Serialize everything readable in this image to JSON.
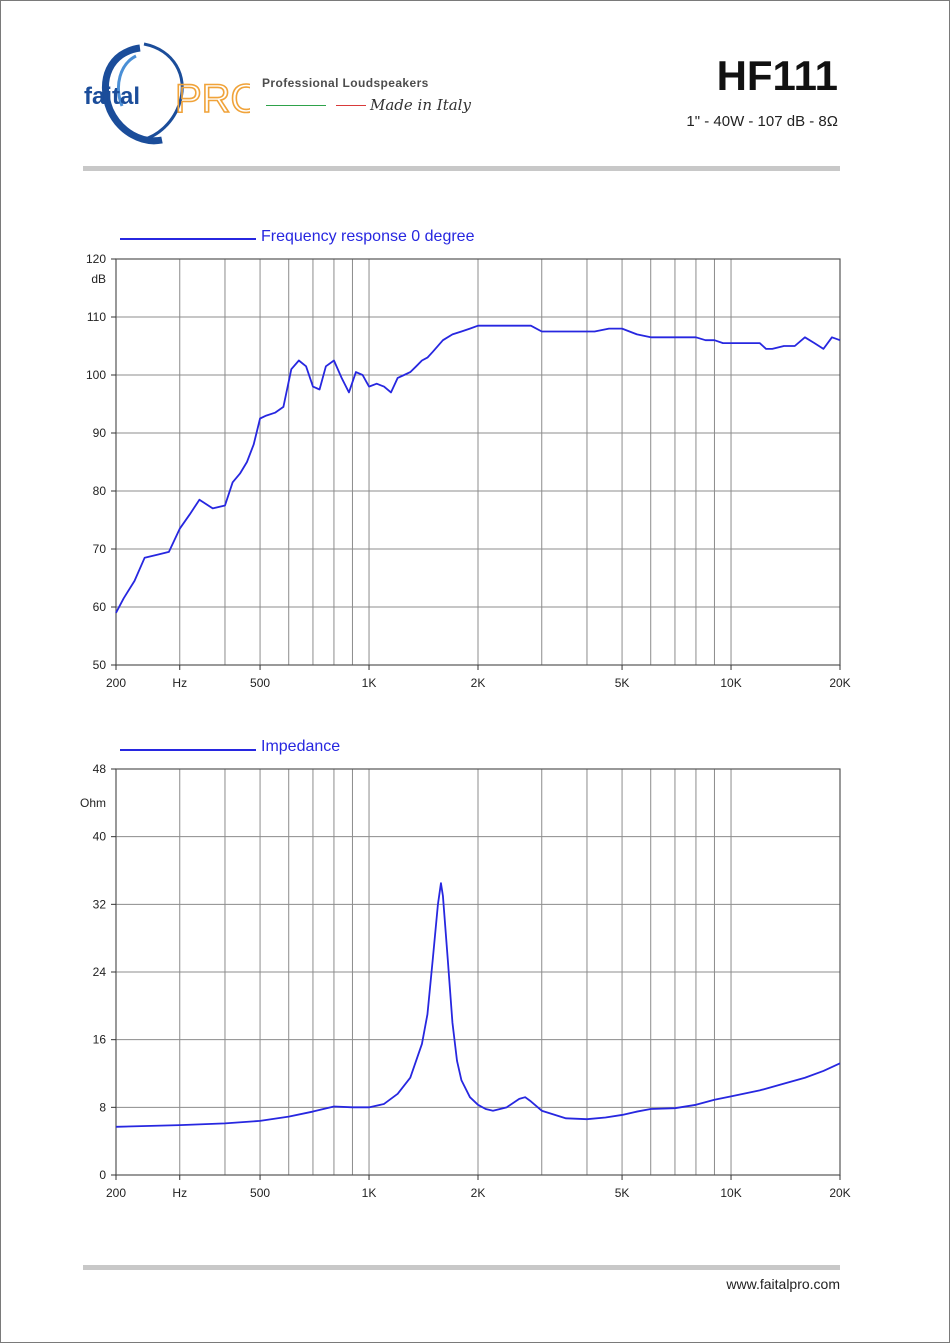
{
  "header": {
    "brand_name": "faitalPRO",
    "tagline_top": "Professional Loudspeakers",
    "tagline_bottom": "Made in Italy",
    "model": "HF111",
    "spec": "1\" - 40W - 107 dB - 8Ω",
    "colors": {
      "brand_blue": "#1b4d9a",
      "brand_orange": "#f0a33a",
      "italy_green": "#2ea24a",
      "italy_red": "#d83a3a"
    }
  },
  "footer": {
    "url": "www.faitalpro.com"
  },
  "chart_data": [
    {
      "type": "line",
      "title": "Frequency response 0 degree",
      "xscale": "log",
      "xlim": [
        200,
        20000
      ],
      "ylim": [
        50,
        120
      ],
      "ylabel": "dB",
      "xticks": [
        {
          "v": 200,
          "label": "200"
        },
        {
          "v": 300,
          "label": "Hz"
        },
        {
          "v": 500,
          "label": "500"
        },
        {
          "v": 1000,
          "label": "1K"
        },
        {
          "v": 2000,
          "label": "2K"
        },
        {
          "v": 5000,
          "label": "5K"
        },
        {
          "v": 10000,
          "label": "10K"
        },
        {
          "v": 20000,
          "label": "20K"
        }
      ],
      "yticks": [
        50,
        60,
        70,
        80,
        90,
        100,
        110,
        120
      ],
      "line_color": "#2727e0",
      "grid": true,
      "series": [
        {
          "name": "Frequency response 0 degree",
          "x": [
            200,
            210,
            225,
            240,
            260,
            280,
            300,
            320,
            340,
            370,
            400,
            420,
            440,
            460,
            480,
            500,
            520,
            550,
            580,
            610,
            640,
            670,
            700,
            730,
            760,
            800,
            840,
            880,
            920,
            960,
            1000,
            1050,
            1100,
            1150,
            1200,
            1250,
            1300,
            1350,
            1400,
            1450,
            1500,
            1600,
            1700,
            1800,
            1900,
            2000,
            2200,
            2400,
            2600,
            2800,
            3000,
            3200,
            3500,
            3800,
            4200,
            4600,
            5000,
            5500,
            6000,
            6500,
            7000,
            7500,
            8000,
            8500,
            9000,
            9500,
            10000,
            11000,
            12000,
            12500,
            13000,
            14000,
            15000,
            16000,
            17000,
            18000,
            19000,
            20000
          ],
          "y": [
            59,
            61.5,
            64.5,
            68.5,
            69,
            69.5,
            73.5,
            76,
            78.5,
            77,
            77.5,
            81.5,
            83,
            85,
            88,
            92.5,
            93,
            93.5,
            94.5,
            101,
            102.5,
            101.5,
            98,
            97.5,
            101.5,
            102.5,
            99.5,
            97,
            100.5,
            100,
            98,
            98.5,
            98,
            97,
            99.5,
            100,
            100.5,
            101.5,
            102.5,
            103,
            104,
            106,
            107,
            107.5,
            108,
            108.5,
            108.5,
            108.5,
            108.5,
            108.5,
            107.5,
            107.5,
            107.5,
            107.5,
            107.5,
            108,
            108,
            107,
            106.5,
            106.5,
            106.5,
            106.5,
            106.5,
            106,
            106,
            105.5,
            105.5,
            105.5,
            105.5,
            104.5,
            104.5,
            105,
            105,
            106.5,
            105.5,
            104.5,
            106.5,
            106
          ]
        }
      ]
    },
    {
      "type": "line",
      "title": "Impedance",
      "xscale": "log",
      "xlim": [
        200,
        20000
      ],
      "ylim": [
        0,
        48
      ],
      "ylabel": "Ohm",
      "xticks": [
        {
          "v": 200,
          "label": "200"
        },
        {
          "v": 300,
          "label": "Hz"
        },
        {
          "v": 500,
          "label": "500"
        },
        {
          "v": 1000,
          "label": "1K"
        },
        {
          "v": 2000,
          "label": "2K"
        },
        {
          "v": 5000,
          "label": "5K"
        },
        {
          "v": 10000,
          "label": "10K"
        },
        {
          "v": 20000,
          "label": "20K"
        }
      ],
      "yticks": [
        0,
        8,
        16,
        24,
        32,
        40,
        48
      ],
      "line_color": "#2727e0",
      "grid": true,
      "series": [
        {
          "name": "Impedance",
          "x": [
            200,
            300,
            400,
            500,
            600,
            700,
            800,
            900,
            1000,
            1100,
            1200,
            1300,
            1400,
            1450,
            1500,
            1550,
            1580,
            1600,
            1650,
            1700,
            1750,
            1800,
            1900,
            2000,
            2100,
            2200,
            2400,
            2600,
            2700,
            2800,
            3000,
            3500,
            4000,
            4500,
            5000,
            5500,
            6000,
            7000,
            8000,
            9000,
            10000,
            12000,
            14000,
            16000,
            18000,
            20000
          ],
          "y": [
            5.7,
            5.9,
            6.1,
            6.4,
            6.9,
            7.5,
            8.1,
            8,
            8,
            8.4,
            9.6,
            11.5,
            15.5,
            19,
            25.5,
            32,
            34.5,
            33,
            25.5,
            18,
            13.5,
            11.2,
            9.2,
            8.3,
            7.8,
            7.6,
            8,
            9,
            9.2,
            8.7,
            7.6,
            6.7,
            6.6,
            6.8,
            7.1,
            7.5,
            7.8,
            7.9,
            8.3,
            8.9,
            9.3,
            10,
            10.8,
            11.5,
            12.3,
            13.2
          ]
        }
      ]
    }
  ]
}
